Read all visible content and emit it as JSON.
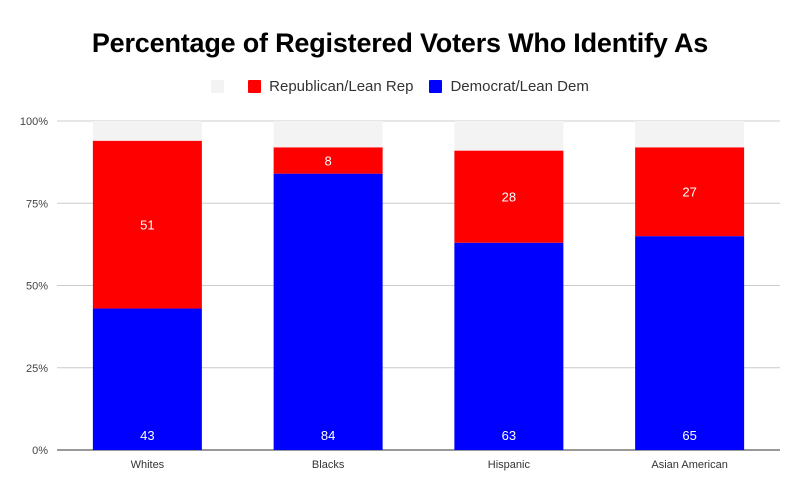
{
  "chart_data": {
    "type": "bar",
    "stacked": true,
    "title": "Percentage of Registered Voters Who Identify As",
    "categories": [
      "Whites",
      "Blacks",
      "Hispanic",
      "Asian American"
    ],
    "series": [
      {
        "name": "Democrat/Lean Dem",
        "color": "#0000ff",
        "values": [
          43,
          84,
          63,
          65
        ]
      },
      {
        "name": "Republican/Lean Rep",
        "color": "#ff0000",
        "values": [
          51,
          8,
          28,
          27
        ]
      },
      {
        "name": "",
        "color": "#f3f3f3",
        "values": [
          6,
          8,
          9,
          8
        ]
      }
    ],
    "legend": [
      {
        "label": "",
        "color": "#f3f3f3"
      },
      {
        "label": "Republican/Lean Rep",
        "color": "#ff0000"
      },
      {
        "label": "Democrat/Lean Dem",
        "color": "#0000ff"
      }
    ],
    "y_ticks": [
      "0%",
      "25%",
      "50%",
      "75%",
      "100%"
    ],
    "ylim": [
      0,
      100
    ],
    "legend_position": "top",
    "grid": true
  }
}
